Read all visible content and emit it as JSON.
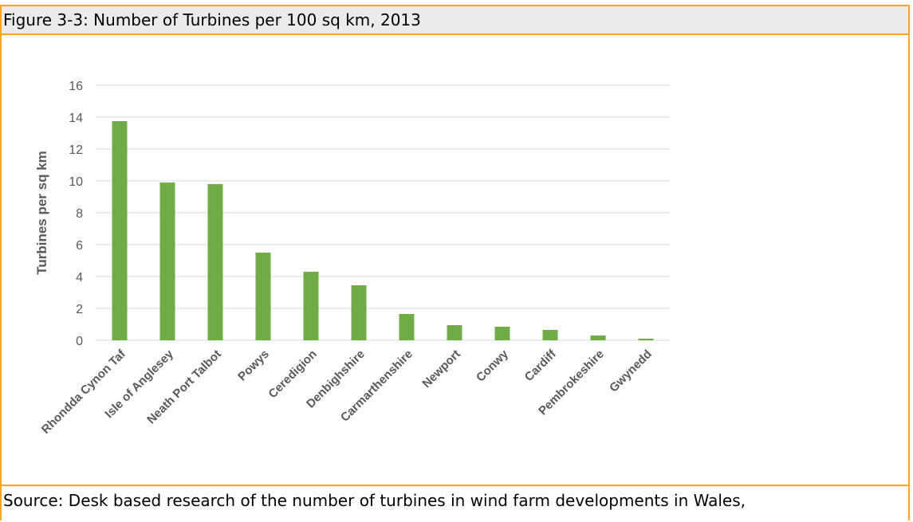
{
  "figure": {
    "title": "Figure 3-3: Number of Turbines per 100 sq km, 2013",
    "source": "Source: Desk based research of the number of turbines in wind farm developments in Wales,"
  },
  "colors": {
    "border": "#f5a623",
    "header_bg": "#ebebeb",
    "bar": "#70ad47",
    "grid": "#d9d9d9",
    "axis_text": "#595959"
  },
  "chart_data": {
    "type": "bar",
    "title": "",
    "xlabel": "",
    "ylabel": "Turbines per sq km",
    "ylim": [
      0,
      16
    ],
    "yticks": [
      0,
      2,
      4,
      6,
      8,
      10,
      12,
      14,
      16
    ],
    "grid": true,
    "legend": "none",
    "categories": [
      "Rhondda Cynon Taf",
      "Isle of Anglesey",
      "Neath Port Talbot",
      "Powys",
      "Ceredigion",
      "Denbighshire",
      "Carmarthenshire",
      "Newport",
      "Conwy",
      "Cardiff",
      "Pembrokeshire",
      "Gwynedd"
    ],
    "values": [
      13.75,
      9.9,
      9.8,
      5.5,
      4.3,
      3.45,
      1.65,
      0.95,
      0.85,
      0.65,
      0.3,
      0.1
    ]
  }
}
